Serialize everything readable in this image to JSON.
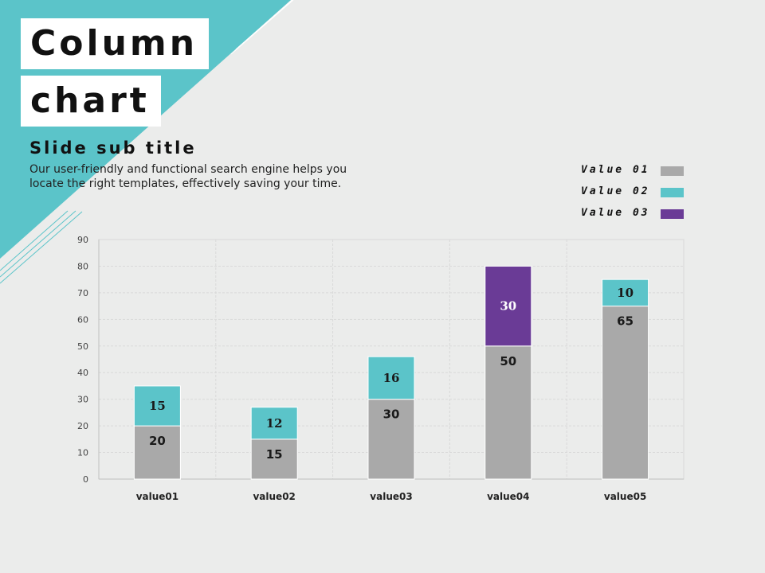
{
  "slide": {
    "title_line1": "Column",
    "title_line2": "chart",
    "subtitle": "Slide sub title",
    "description": "Our user-friendly and functional search engine helps you locate the right templates, effectively saving your time."
  },
  "colors": {
    "accent": "#5bc4c9",
    "background": "#ebeceb",
    "value01": "#a9a9a9",
    "value02": "#5bc4c9",
    "value03": "#6a3b96"
  },
  "chart_data": {
    "type": "bar",
    "stacked": true,
    "categories": [
      "value01",
      "value02",
      "value03",
      "value04",
      "value05"
    ],
    "series": [
      {
        "name": "Value 01",
        "values": [
          20,
          15,
          30,
          50,
          65
        ]
      },
      {
        "name": "Value 02",
        "values": [
          15,
          12,
          16,
          0,
          10
        ]
      },
      {
        "name": "Value 03",
        "values": [
          0,
          0,
          0,
          30,
          0
        ]
      }
    ],
    "ylim": [
      0,
      90
    ],
    "yticks": [
      0,
      10,
      20,
      30,
      40,
      50,
      60,
      70,
      80,
      90
    ],
    "grid": true,
    "legend": "top-right",
    "title": "",
    "xlabel": "",
    "ylabel": ""
  }
}
